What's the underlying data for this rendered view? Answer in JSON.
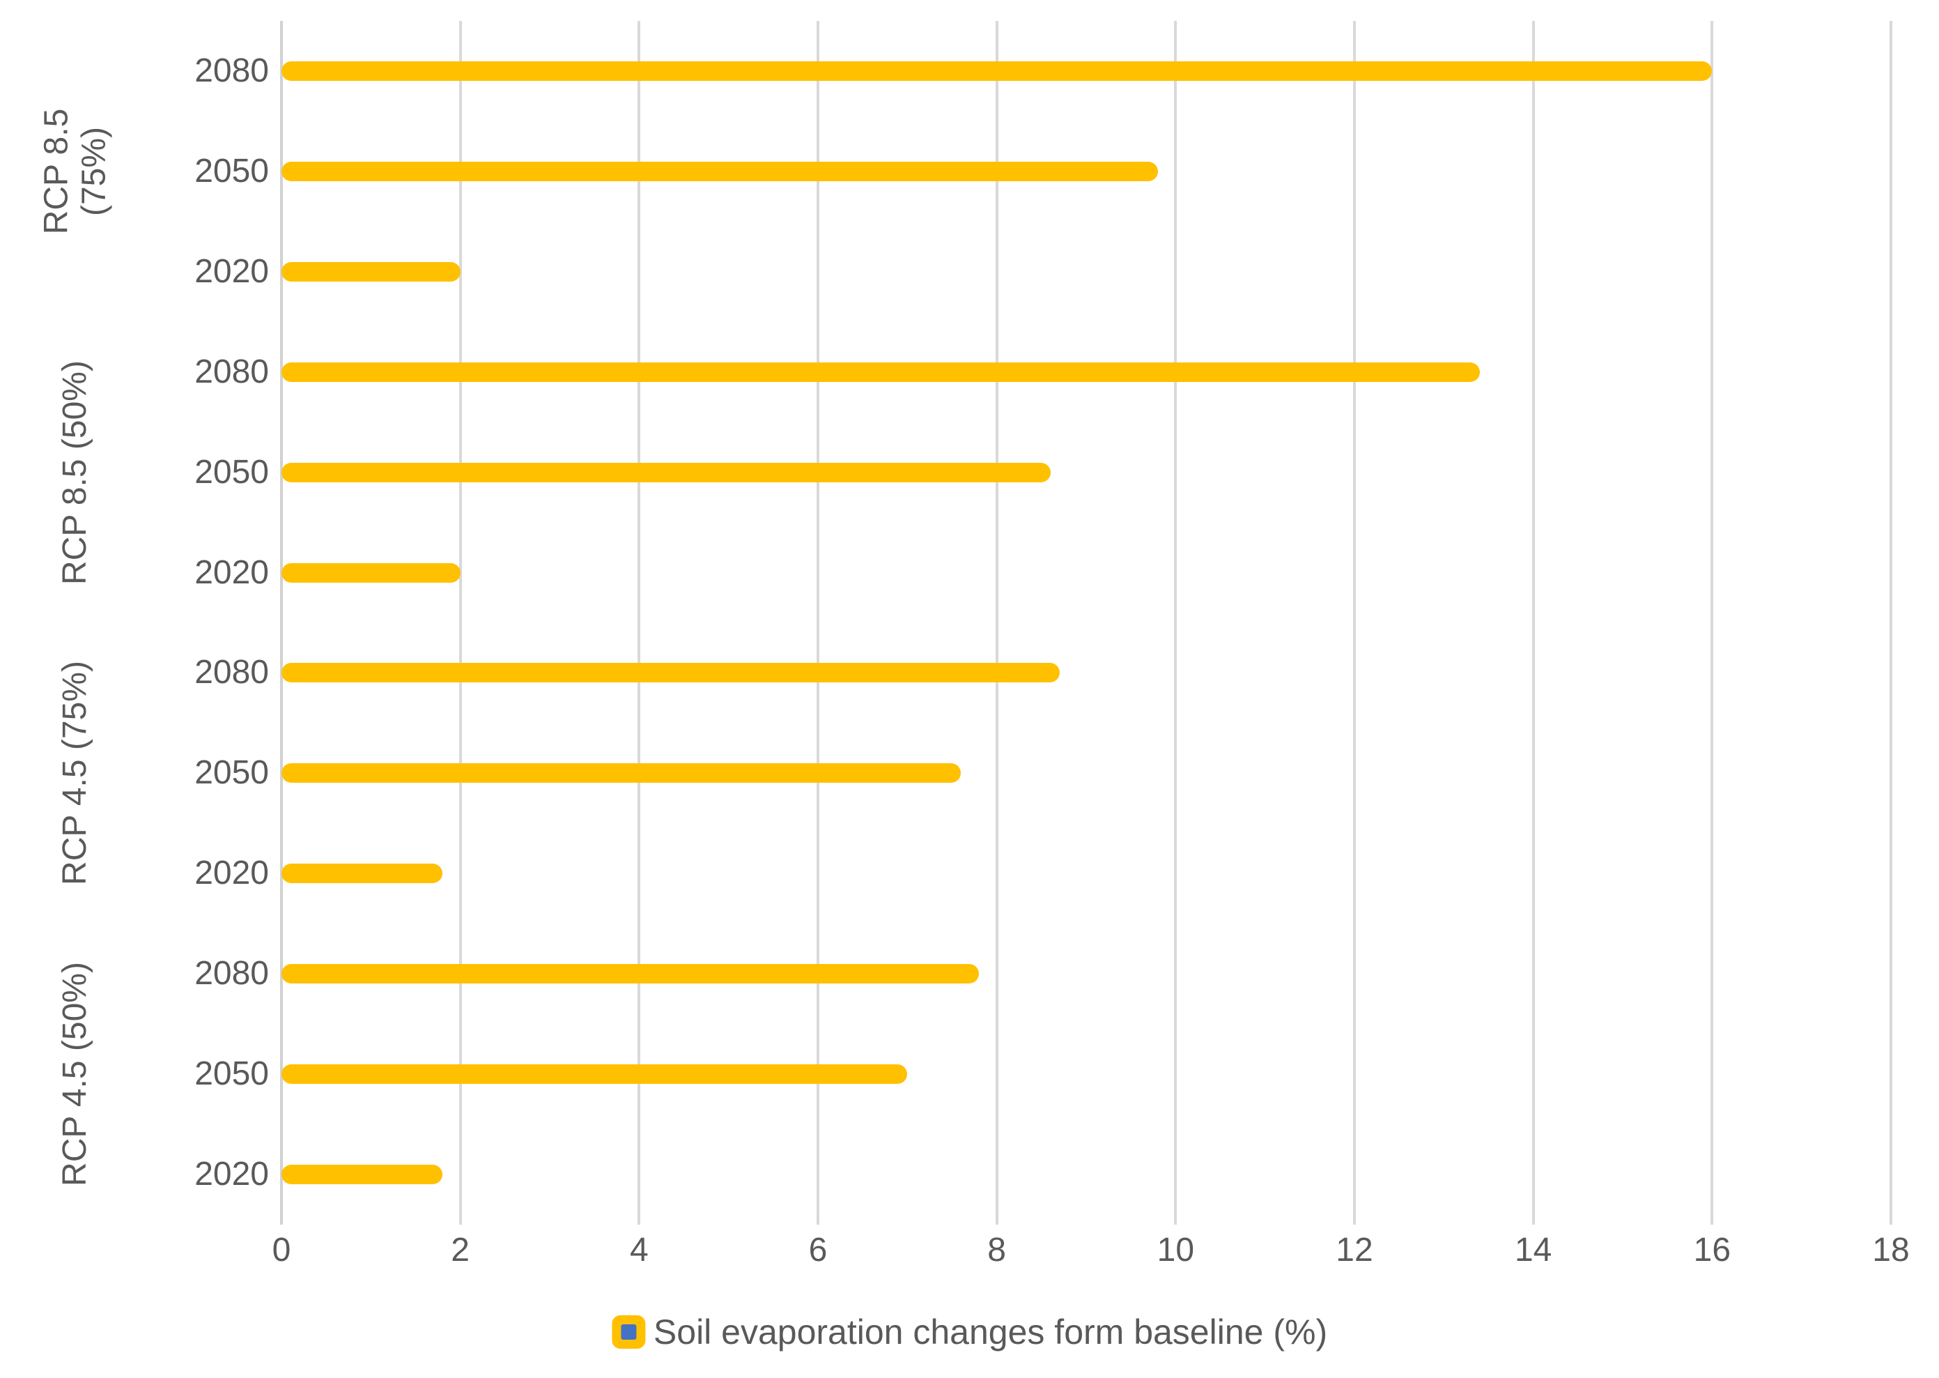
{
  "chart_data": {
    "type": "bar",
    "orientation": "horizontal",
    "title": "",
    "legend": "Soil evaporation changes form baseline (%)",
    "legend_position": "bottom-center",
    "grid": true,
    "x_axis": {
      "label": "",
      "min": 0,
      "max": 18,
      "tick_step": 2,
      "ticks": [
        0,
        2,
        4,
        6,
        8,
        10,
        12,
        14,
        16,
        18
      ]
    },
    "y_axis": {
      "label": "",
      "category_order": "groups listed top to bottom, bars top to bottom within group"
    },
    "groups": [
      {
        "label": "RCP 8.5 (75%)",
        "label_lines": [
          "RCP 8.5",
          "(75%)"
        ],
        "bars": [
          {
            "year": "2080",
            "value": 16.0
          },
          {
            "year": "2050",
            "value": 9.8
          },
          {
            "year": "2020",
            "value": 2.0
          }
        ]
      },
      {
        "label": "RCP 8.5 (50%)",
        "label_lines": [
          "RCP 8.5 (50%)"
        ],
        "bars": [
          {
            "year": "2080",
            "value": 13.4
          },
          {
            "year": "2050",
            "value": 8.6
          },
          {
            "year": "2020",
            "value": 2.0
          }
        ]
      },
      {
        "label": "RCP 4.5 (75%)",
        "label_lines": [
          "RCP 4.5 (75%)"
        ],
        "bars": [
          {
            "year": "2080",
            "value": 8.7
          },
          {
            "year": "2050",
            "value": 7.6
          },
          {
            "year": "2020",
            "value": 1.8
          }
        ]
      },
      {
        "label": "RCP 4.5 (50%)",
        "label_lines": [
          "RCP 4.5 (50%)"
        ],
        "bars": [
          {
            "year": "2080",
            "value": 7.8
          },
          {
            "year": "2050",
            "value": 7.0
          },
          {
            "year": "2020",
            "value": 1.8
          }
        ]
      }
    ],
    "colors": {
      "bar": "#FFC000",
      "legend_marker_outer": "#FFC000",
      "legend_marker_inner": "#4472C4",
      "gridline": "#D9D9D9",
      "text": "#595959",
      "background": "#FFFFFF"
    }
  }
}
